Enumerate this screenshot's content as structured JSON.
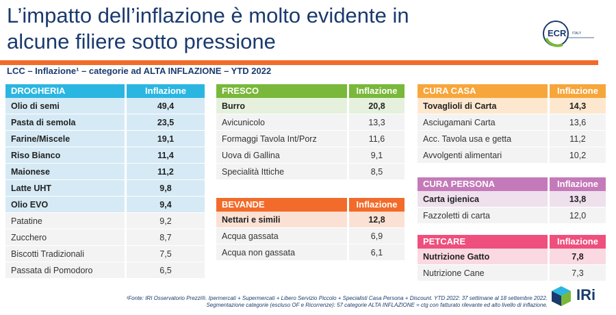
{
  "title": {
    "line1": "L’impatto dell’inflazione è molto evidente in",
    "line2": "alcune filiere sotto pressione"
  },
  "logo": {
    "text": "ECR",
    "small": "ITALY"
  },
  "subtitle": "LCC – Inflazione¹ – categorie ad ALTA INFLAZIONE – YTD 2022",
  "colors": {
    "drogheria": "#2bb6e1",
    "fresco": "#79b83a",
    "cura_casa": "#f7a63b",
    "bevande": "#f26b2a",
    "cura_persona": "#c47ab9",
    "petcare": "#ef4f7d",
    "title": "#1a3a6e",
    "bar": "#f26b2a"
  },
  "tables": {
    "drogheria": {
      "header": "DROGHERIA",
      "col": "Inflazione",
      "rows": [
        {
          "name": "Olio di semi",
          "value": "49,4"
        },
        {
          "name": "Pasta di semola",
          "value": "23,5"
        },
        {
          "name": "Farine/Miscele",
          "value": "19,1"
        },
        {
          "name": "Riso Bianco",
          "value": "11,4"
        },
        {
          "name": "Maionese",
          "value": "11,2"
        },
        {
          "name": "Latte UHT",
          "value": "9,8"
        },
        {
          "name": "Olio EVO",
          "value": "9,4"
        },
        {
          "name": "Patatine",
          "value": "9,2"
        },
        {
          "name": "Zucchero",
          "value": "8,7"
        },
        {
          "name": "Biscotti Tradizionali",
          "value": "7,5"
        },
        {
          "name": "Passata di Pomodoro",
          "value": "6,5"
        }
      ]
    },
    "fresco": {
      "header": "FRESCO",
      "col": "Inflazione",
      "rows": [
        {
          "name": "Burro",
          "value": "20,8"
        },
        {
          "name": "Avicunicolo",
          "value": "13,3"
        },
        {
          "name": "Formaggi Tavola Int/Porz",
          "value": "11,6"
        },
        {
          "name": "Uova di Gallina",
          "value": "9,1"
        },
        {
          "name": "Specialità Ittiche",
          "value": "8,5"
        }
      ]
    },
    "bevande": {
      "header": "BEVANDE",
      "col": "Inflazione",
      "rows": [
        {
          "name": "Nettari e simili",
          "value": "12,8"
        },
        {
          "name": "Acqua gassata",
          "value": "6,9"
        },
        {
          "name": "Acqua non gassata",
          "value": "6,1"
        }
      ]
    },
    "cura_casa": {
      "header": "CURA CASA",
      "col": "Inflazione",
      "rows": [
        {
          "name": "Tovaglioli di Carta",
          "value": "14,3"
        },
        {
          "name": "Asciugamani Carta",
          "value": "13,6"
        },
        {
          "name": "Acc. Tavola usa e getta",
          "value": "11,2"
        },
        {
          "name": "Avvolgenti alimentari",
          "value": "10,2"
        }
      ]
    },
    "cura_persona": {
      "header": "CURA PERSONA",
      "col": "Inflazione",
      "rows": [
        {
          "name": "Carta igienica",
          "value": "13,8"
        },
        {
          "name": "Fazzoletti di carta",
          "value": "12,0"
        }
      ]
    },
    "petcare": {
      "header": "PETCARE",
      "col": "Inflazione",
      "rows": [
        {
          "name": "Nutrizione Gatto",
          "value": "7,8"
        },
        {
          "name": "Nutrizione Cane",
          "value": "7,3"
        }
      ]
    }
  },
  "footnote": {
    "line1": "¹Fonte: IRI Osservatorio Prezzi®. Ipermercati + Supermercati + Libero Servizio Piccolo + Specialisti Casa Persona + Discount. YTD 2022: 37 settimane al 18 settembre 2022.",
    "line2": "Segmentazione categorie (escluso OF e Ricorrenze): 57 categorie ALTA INFLAZIONE = ctg con fatturato rilevante ed alto livello di inflazione."
  },
  "brand": "IRi"
}
